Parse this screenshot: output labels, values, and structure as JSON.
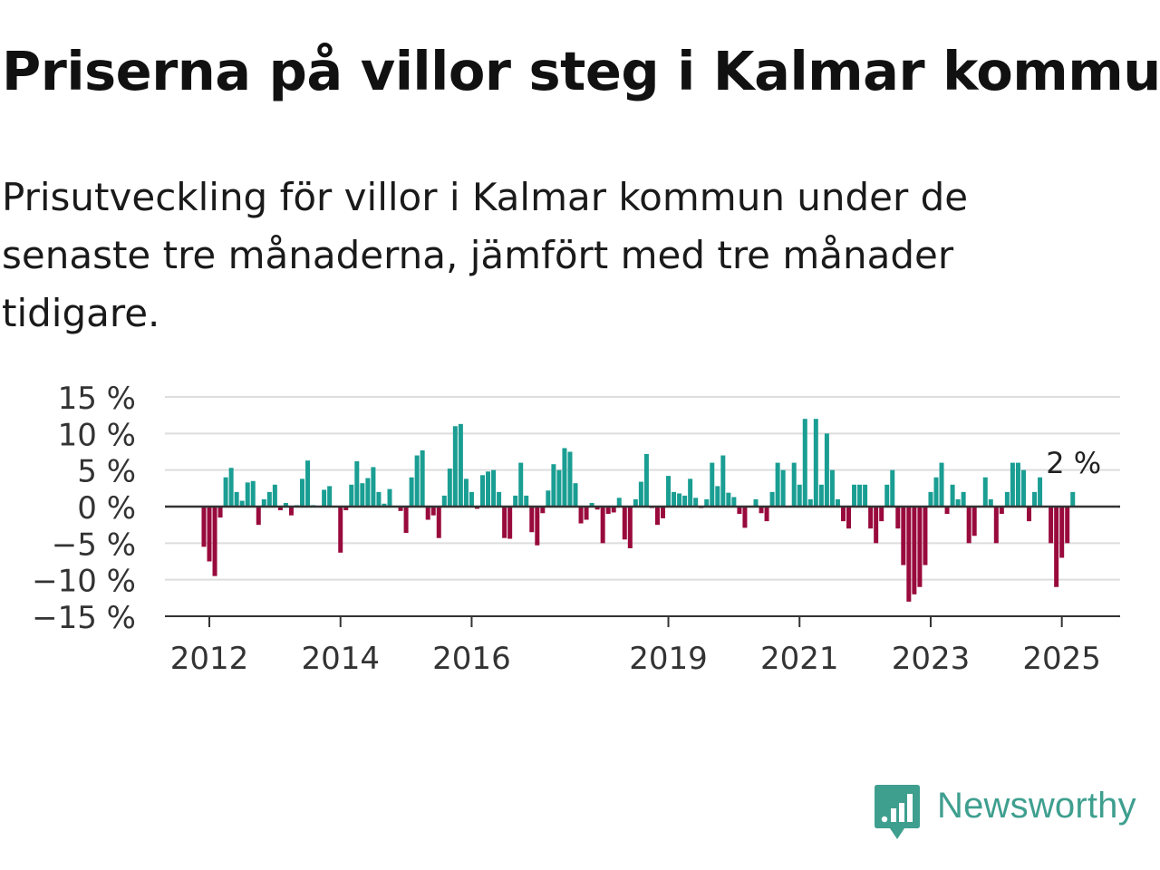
{
  "title": "Priserna på villor steg i Kalmar kommun",
  "subtitle": "Prisutveckling för villor i Kalmar kommun under de senaste tre månaderna, jämfört med tre månader tidigare.",
  "brand": {
    "name": "Newsworthy",
    "icon": "newsworthy-logo-icon",
    "color": "#3f9f8f"
  },
  "colors": {
    "positive": "#1a9e93",
    "negative": "#990a3c",
    "grid": "#dddddd",
    "zero": "#333333"
  },
  "chart_data": {
    "type": "bar",
    "ylim": [
      -15,
      15
    ],
    "yticks": [
      15,
      10,
      5,
      0,
      -5,
      -10,
      -15
    ],
    "ytick_labels": [
      "15 %",
      "10 %",
      "5 %",
      "0 %",
      "−5 %",
      "−10 %",
      "−15 %"
    ],
    "xticks": [
      {
        "date": "2012-01",
        "label": "2012"
      },
      {
        "date": "2014-01",
        "label": "2014"
      },
      {
        "date": "2016-01",
        "label": "2016"
      },
      {
        "date": "2019-01",
        "label": "2019"
      },
      {
        "date": "2021-01",
        "label": "2021"
      },
      {
        "date": "2023-01",
        "label": "2023"
      },
      {
        "date": "2025-01",
        "label": "2025"
      }
    ],
    "annotation": {
      "date": "2025-03",
      "label": "2 %"
    },
    "series": [
      {
        "start": "2011-12",
        "end": "2025-03",
        "values": [
          -5.5,
          -7.5,
          -9.5,
          -1.5,
          4,
          5.3,
          2,
          0.8,
          3.3,
          3.5,
          -2.5,
          1,
          2,
          3,
          -0.5,
          0.5,
          -1.2,
          0.2,
          3.8,
          6.3,
          0.2,
          0,
          2.3,
          2.8,
          0,
          -6.3,
          -0.5,
          3,
          6.2,
          3.2,
          3.9,
          5.4,
          2,
          0.4,
          2.4,
          0,
          -0.6,
          -3.6,
          4,
          7,
          7.7,
          -1.8,
          -1.2,
          -4.3,
          1.5,
          5.2,
          11,
          11.3,
          3.8,
          2,
          -0.3,
          4.3,
          4.8,
          5,
          2,
          -4.3,
          -4.4,
          1.5,
          6,
          1.5,
          -3.5,
          -5.3,
          -0.9,
          2.2,
          5.8,
          5,
          8,
          7.5,
          3.2,
          -2.3,
          -1.8,
          0.5,
          -0.4,
          -5,
          -1,
          -0.8,
          1.2,
          -4.5,
          -5.7,
          1,
          3.4,
          7.2,
          -0.2,
          -2.5,
          -1.6,
          4.2,
          2,
          1.8,
          1.5,
          3.8,
          1.2,
          -0.2,
          1,
          6,
          2.8,
          7,
          1.9,
          1.3,
          -1,
          -2.9,
          0,
          1,
          -0.9,
          -2,
          2,
          6,
          5,
          0,
          6,
          3,
          12,
          1,
          12,
          3,
          10,
          5,
          1,
          -2,
          -3,
          3,
          3,
          3,
          -3,
          -5,
          -2,
          3,
          5,
          -3,
          -8,
          -13,
          -12,
          -11,
          -8,
          2,
          4,
          6,
          -1,
          3,
          1,
          2,
          -5,
          -4,
          0,
          4,
          1,
          -5,
          -1,
          2,
          6,
          6,
          5,
          -2,
          2,
          4,
          0,
          -5,
          -11,
          -7,
          -5,
          2
        ]
      }
    ]
  }
}
